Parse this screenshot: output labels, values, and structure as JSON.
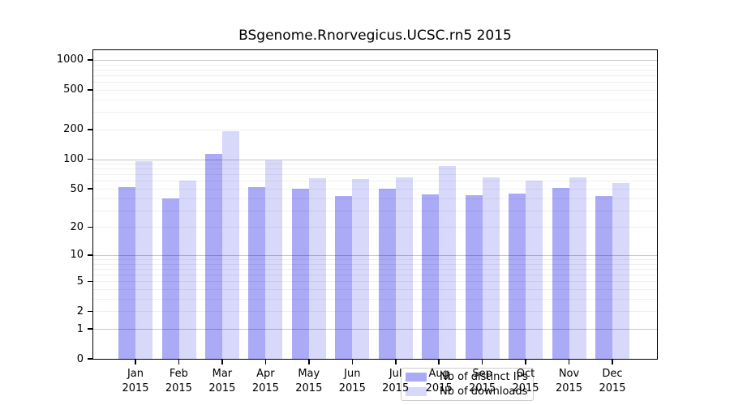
{
  "chart_data": {
    "type": "bar",
    "title": "BSgenome.Rnorvegicus.UCSC.rn5 2015",
    "categories": [
      "Jan",
      "Feb",
      "Mar",
      "Apr",
      "May",
      "Jun",
      "Jul",
      "Aug",
      "Sep",
      "Oct",
      "Nov",
      "Dec"
    ],
    "x_tick_year": "2015",
    "series": [
      {
        "name": "Nb of distinct IPs",
        "color": "#aaaaf6",
        "values": [
          52,
          40,
          113,
          52,
          50,
          42,
          50,
          44,
          43,
          45,
          51,
          42
        ]
      },
      {
        "name": "Nb of downloads",
        "color": "#d8d8fa",
        "values": [
          95,
          61,
          191,
          97,
          64,
          63,
          65,
          85,
          65,
          60,
          65,
          57
        ]
      }
    ],
    "y_ticks": [
      0,
      1,
      2,
      5,
      10,
      20,
      50,
      100,
      200,
      500,
      1000
    ],
    "y_scale": "log10(1+x)",
    "ylim": [
      0,
      1250
    ],
    "grid": "on",
    "legend_position": "bottom-center-inside"
  }
}
